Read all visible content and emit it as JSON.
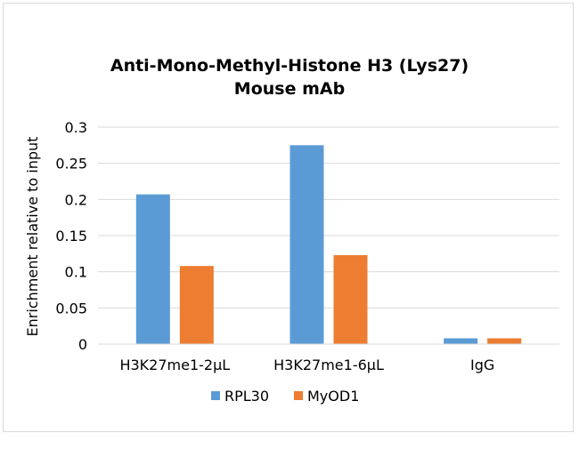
{
  "chart_data": {
    "type": "bar",
    "title_line1": "Anti-Mono-Methyl-Histone H3 (Lys27)",
    "title_line2": "Mouse mAb",
    "ylabel": "Enrichment relative to input",
    "xlabel": "",
    "categories": [
      "H3K27me1-2µL",
      "H3K27me1-6µL",
      "IgG"
    ],
    "series": [
      {
        "name": "RPL30",
        "values": [
          0.207,
          0.275,
          0.008
        ],
        "color": "#5b9bd5"
      },
      {
        "name": "MyOD1",
        "values": [
          0.108,
          0.123,
          0.008
        ],
        "color": "#ed7d31"
      }
    ],
    "ylim": [
      0,
      0.3
    ],
    "yticks": [
      "0",
      "0.05",
      "0.1",
      "0.15",
      "0.2",
      "0.25",
      "0.3"
    ],
    "grid": true,
    "legend_position": "bottom"
  }
}
